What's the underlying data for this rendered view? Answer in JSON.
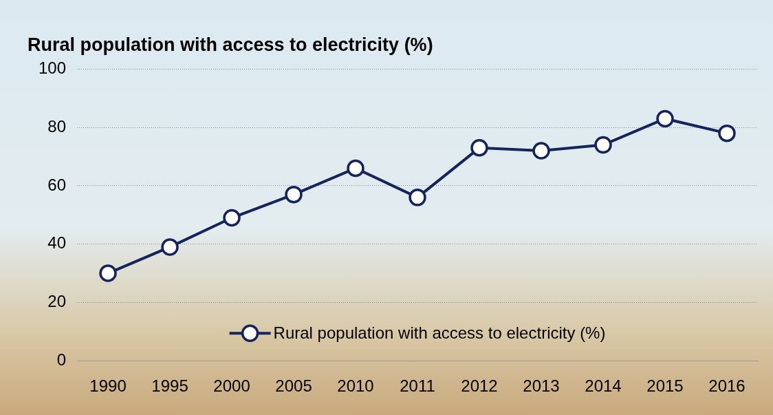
{
  "chart_data": {
    "type": "line",
    "title": "Rural population with access to electricity (%)",
    "categories": [
      "1990",
      "1995",
      "2000",
      "2005",
      "2010",
      "2011",
      "2012",
      "2013",
      "2014",
      "2015",
      "2016"
    ],
    "series": [
      {
        "name": "Rural population with access to electricity (%)",
        "color": "#15245a",
        "values": [
          30,
          39,
          49,
          57,
          66,
          56,
          73,
          72,
          74,
          83,
          78
        ],
        "marker": "circle"
      }
    ],
    "ylim": [
      0,
      100
    ],
    "yticks": [
      0,
      20,
      40,
      60,
      80,
      100
    ],
    "grid": true,
    "legend": "lower center"
  }
}
